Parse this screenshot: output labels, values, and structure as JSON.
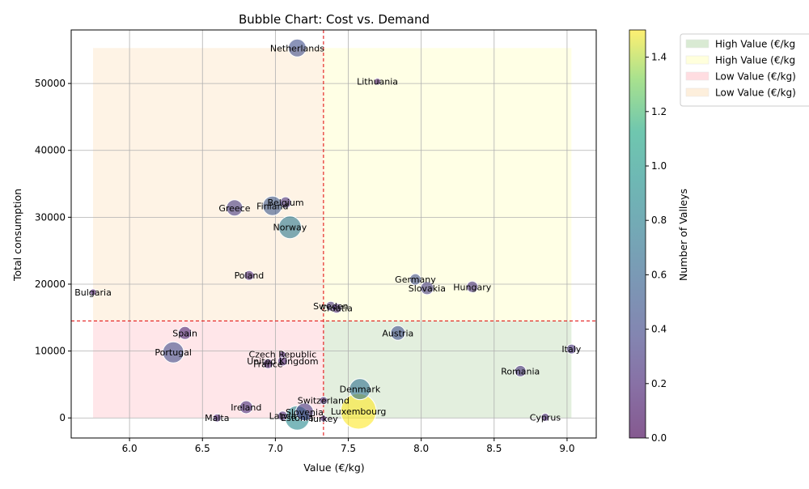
{
  "chart_data": {
    "type": "scatter",
    "title": "Bubble Chart: Cost vs. Demand",
    "xlabel": "Value (€/kg)",
    "ylabel": "Total consumption",
    "xlim": [
      5.6,
      9.2
    ],
    "ylim": [
      -3000,
      58000
    ],
    "xticks": [
      "6.0",
      "6.5",
      "7.0",
      "7.5",
      "8.0",
      "8.5",
      "9.0"
    ],
    "xtick_values": [
      6.0,
      6.5,
      7.0,
      7.5,
      8.0,
      8.5,
      9.0
    ],
    "yticks": [
      "0",
      "10000",
      "20000",
      "30000",
      "40000",
      "50000"
    ],
    "ytick_values": [
      0,
      10000,
      20000,
      30000,
      40000,
      50000
    ],
    "grid": true,
    "colorbar": {
      "label": "Number of Valleys",
      "range": [
        0,
        1.5
      ],
      "ticks": [
        "0.0",
        "0.2",
        "0.4",
        "0.6",
        "0.8",
        "1.0",
        "1.2",
        "1.4"
      ],
      "tick_values": [
        0,
        0.2,
        0.4,
        0.6,
        0.8,
        1.0,
        1.2,
        1.4
      ],
      "colormap": "viridis"
    },
    "threshold_lines": {
      "x": 7.33,
      "y": 14500,
      "color": "#e00000"
    },
    "quadrants": [
      {
        "label": "High Value (€/kg)",
        "x": [
          7.33,
          9.03
        ],
        "y": [
          0,
          14500
        ],
        "color": "#d9ead3"
      },
      {
        "label": "High Value (€/kg)",
        "x": [
          7.33,
          9.03
        ],
        "y": [
          14500,
          55300
        ],
        "color": "#ffffdc"
      },
      {
        "label": "Low Value (€/kg)",
        "x": [
          5.75,
          7.33
        ],
        "y": [
          0,
          14500
        ],
        "color": "#ffdde1"
      },
      {
        "label": "Low Value (€/kg)",
        "x": [
          5.75,
          7.33
        ],
        "y": [
          14500,
          55300
        ],
        "color": "#fdefdc"
      }
    ],
    "legend": {
      "position": "outside-right",
      "entries": [
        "High Value (€/kg",
        "High Value (€/kg",
        "Low Value (€/kg)",
        "Low Value (€/kg)"
      ]
    },
    "points": [
      {
        "label": "Netherlands",
        "x": 7.15,
        "y": 55300,
        "valleys": 0.35,
        "size": 11
      },
      {
        "label": "Lithuania",
        "x": 7.7,
        "y": 50300,
        "valleys": 0.1,
        "size": 4
      },
      {
        "label": "Belgium",
        "x": 7.07,
        "y": 32200,
        "valleys": 0.2,
        "size": 7
      },
      {
        "label": "Finland",
        "x": 6.98,
        "y": 31700,
        "valleys": 0.4,
        "size": 12
      },
      {
        "label": "Greece",
        "x": 6.72,
        "y": 31400,
        "valleys": 0.25,
        "size": 10
      },
      {
        "label": "Norway",
        "x": 7.1,
        "y": 28500,
        "valleys": 0.6,
        "size": 14
      },
      {
        "label": "Poland",
        "x": 6.82,
        "y": 21300,
        "valleys": 0.15,
        "size": 6
      },
      {
        "label": "Germany",
        "x": 7.96,
        "y": 20700,
        "valleys": 0.35,
        "size": 7
      },
      {
        "label": "Hungary",
        "x": 8.35,
        "y": 19600,
        "valleys": 0.2,
        "size": 7
      },
      {
        "label": "Slovakia",
        "x": 8.04,
        "y": 19400,
        "valleys": 0.25,
        "size": 8
      },
      {
        "label": "Bulgaria",
        "x": 5.75,
        "y": 18800,
        "valleys": 0.1,
        "size": 4
      },
      {
        "label": "Sweden",
        "x": 7.38,
        "y": 16700,
        "valleys": 0.2,
        "size": 6
      },
      {
        "label": "Croatia",
        "x": 7.42,
        "y": 16400,
        "valleys": 0.15,
        "size": 6
      },
      {
        "label": "Spain",
        "x": 6.38,
        "y": 12700,
        "valleys": 0.15,
        "size": 8
      },
      {
        "label": "Austria",
        "x": 7.84,
        "y": 12700,
        "valleys": 0.35,
        "size": 9
      },
      {
        "label": "Italy",
        "x": 9.03,
        "y": 10300,
        "valleys": 0.2,
        "size": 6
      },
      {
        "label": "Portugal",
        "x": 6.3,
        "y": 9800,
        "valleys": 0.35,
        "size": 13
      },
      {
        "label": "Czech Republic",
        "x": 7.05,
        "y": 9500,
        "valleys": 0.15,
        "size": 4
      },
      {
        "label": "United Kingdom",
        "x": 7.05,
        "y": 8500,
        "valleys": 0.15,
        "size": 6
      },
      {
        "label": "France",
        "x": 6.95,
        "y": 8100,
        "valleys": 0.15,
        "size": 6
      },
      {
        "label": "Romania",
        "x": 8.68,
        "y": 7000,
        "valleys": 0.2,
        "size": 7
      },
      {
        "label": "Denmark",
        "x": 7.58,
        "y": 4300,
        "valleys": 0.55,
        "size": 13
      },
      {
        "label": "Switzerland",
        "x": 7.33,
        "y": 2600,
        "valleys": 0.2,
        "size": 5
      },
      {
        "label": "Ireland",
        "x": 6.8,
        "y": 1600,
        "valleys": 0.2,
        "size": 8
      },
      {
        "label": "Luxembourg",
        "x": 7.57,
        "y": 1000,
        "valleys": 1.5,
        "size": 22
      },
      {
        "label": "Slovenia",
        "x": 7.2,
        "y": 900,
        "valleys": 0.25,
        "size": 11
      },
      {
        "label": "Latvia",
        "x": 7.05,
        "y": 300,
        "valleys": 0.2,
        "size": 6
      },
      {
        "label": "Estonia",
        "x": 7.15,
        "y": 0,
        "valleys": 0.7,
        "size": 15
      },
      {
        "label": "Turkey",
        "x": 7.33,
        "y": -100,
        "valleys": 0.1,
        "size": 4
      },
      {
        "label": "Malta",
        "x": 6.6,
        "y": 0,
        "valleys": 0.15,
        "size": 5
      },
      {
        "label": "Cyprus",
        "x": 8.85,
        "y": 100,
        "valleys": 0.15,
        "size": 5
      }
    ]
  }
}
